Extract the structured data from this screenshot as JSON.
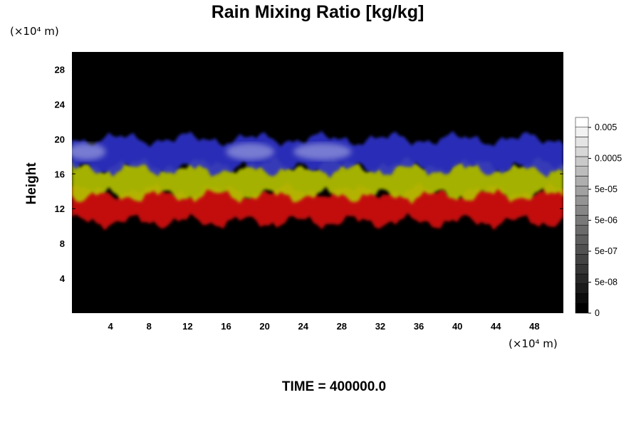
{
  "chart_data": {
    "type": "heatmap",
    "title": "Rain Mixing Ratio [kg/kg]",
    "ylabel": "Height",
    "y_unit": "(×10⁴ m)",
    "x_unit": "(×10⁴ m)",
    "xlim": [
      0,
      51
    ],
    "ylim": [
      0,
      30
    ],
    "x_ticks": [
      4,
      8,
      12,
      16,
      20,
      24,
      28,
      32,
      36,
      40,
      44,
      48
    ],
    "y_ticks": [
      4,
      8,
      12,
      16,
      20,
      24,
      28
    ],
    "time_label": "TIME = 400000.0",
    "colorbar": {
      "labels": [
        "0.005",
        "0.0005",
        "5e-05",
        "5e-06",
        "5e-07",
        "5e-08",
        "0"
      ],
      "levels": 20,
      "colors": [
        "#000000",
        "#ffffff"
      ]
    },
    "bands": [
      {
        "name": "red",
        "color": "#d41010",
        "y_range": [
          10.5,
          14
        ]
      },
      {
        "name": "yellow-green",
        "color": "#b2c000",
        "y_range": [
          13.5,
          17
        ]
      },
      {
        "name": "blue",
        "color": "#2a32c6",
        "y_range": [
          16.5,
          20
        ]
      }
    ]
  }
}
